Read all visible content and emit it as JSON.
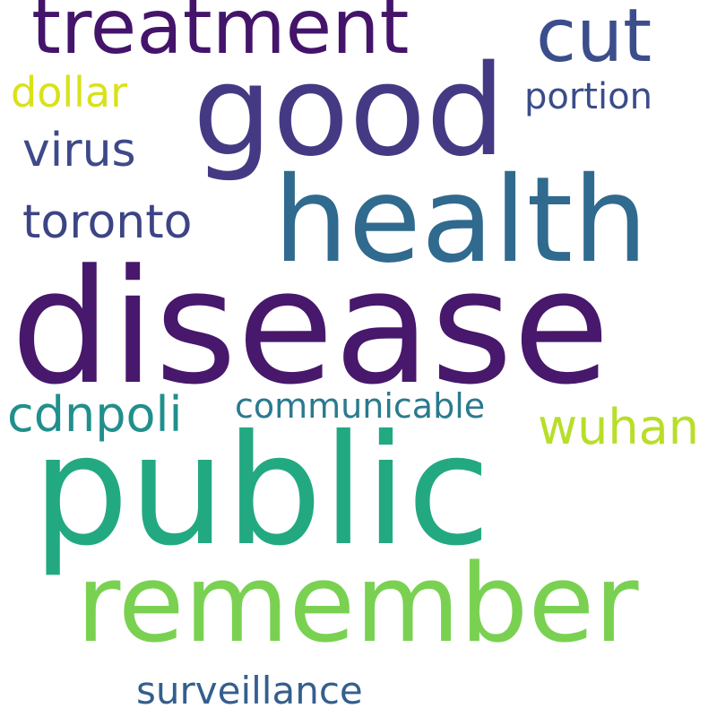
{
  "word_cloud": {
    "background": "#ffffff",
    "words": [
      {
        "text": "disease",
        "color": "#47186b"
      },
      {
        "text": "public",
        "color": "#23a982"
      },
      {
        "text": "health",
        "color": "#306a8e"
      },
      {
        "text": "good",
        "color": "#443a84"
      },
      {
        "text": "remember",
        "color": "#7ad151"
      },
      {
        "text": "treatment",
        "color": "#44146b"
      },
      {
        "text": "cut",
        "color": "#3b4e8c"
      },
      {
        "text": "wuhan",
        "color": "#b8de29"
      },
      {
        "text": "cdnpoli",
        "color": "#218f8c"
      },
      {
        "text": "toronto",
        "color": "#3d4485"
      },
      {
        "text": "virus",
        "color": "#3d4a89"
      },
      {
        "text": "dollar",
        "color": "#d8e219"
      },
      {
        "text": "surveillance",
        "color": "#345f8d"
      },
      {
        "text": "portion",
        "color": "#3b4c8a"
      },
      {
        "text": "communicable",
        "color": "#2a7a8e"
      }
    ]
  }
}
